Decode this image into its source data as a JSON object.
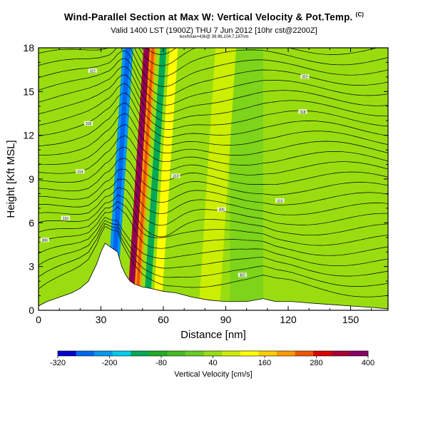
{
  "title": {
    "main": "Wind-Parallel Section at Max W: Vertical Velocity & Pot.Temp.",
    "copyright": "(C)",
    "sub1": "Valid 1400 LST (1900Z) THU 7 Jun 2012 [10hr cst@2200Z]",
    "sub2": "box/lmax=43k@ 39.96,104.7,187nm"
  },
  "chart_data": {
    "type": "heatmap",
    "xlabel": "Distance [nm]",
    "ylabel": "Height [Kft MSL]",
    "xlim": [
      0,
      168
    ],
    "ylim": [
      0,
      18
    ],
    "xticks": [
      0,
      30,
      60,
      90,
      120,
      150
    ],
    "yticks": [
      0,
      3,
      6,
      9,
      12,
      15,
      18
    ],
    "grid": false,
    "colorbar": {
      "label": "Vertical Velocity [cm/s]",
      "tick_labels": [
        "-320",
        "-200",
        "-80",
        "40",
        "160",
        "280",
        "400"
      ],
      "tick_values": [
        -320,
        -200,
        -80,
        40,
        160,
        280,
        400
      ],
      "colors": [
        "#0000cc",
        "#0066ee",
        "#0099ee",
        "#00ccee",
        "#00aa55",
        "#22aa22",
        "#44bb22",
        "#66cc22",
        "#99dd11",
        "#ccee00",
        "#ffff00",
        "#ffcc00",
        "#ff9900",
        "#ee5500",
        "#dd0000",
        "#aa0033",
        "#880066"
      ]
    },
    "terrain_height_kft": [
      [
        0,
        0.3
      ],
      [
        4,
        0.6
      ],
      [
        10,
        0.9
      ],
      [
        16,
        1.2
      ],
      [
        20,
        1.5
      ],
      [
        24,
        2.0
      ],
      [
        26,
        2.6
      ],
      [
        28,
        3.2
      ],
      [
        30,
        4.0
      ],
      [
        32,
        4.6
      ],
      [
        34,
        4.4
      ],
      [
        36,
        4.2
      ],
      [
        38,
        4.0
      ],
      [
        40,
        3.0
      ],
      [
        42,
        2.4
      ],
      [
        44,
        2.0
      ],
      [
        46,
        1.8
      ],
      [
        50,
        1.6
      ],
      [
        54,
        1.5
      ],
      [
        60,
        1.3
      ],
      [
        66,
        1.2
      ],
      [
        74,
        0.9
      ],
      [
        82,
        0.7
      ],
      [
        90,
        0.6
      ],
      [
        100,
        0.6
      ],
      [
        108,
        0.8
      ],
      [
        114,
        0.6
      ],
      [
        122,
        0.6
      ],
      [
        130,
        0.5
      ],
      [
        140,
        0.4
      ],
      [
        150,
        0.3
      ],
      [
        160,
        0.2
      ],
      [
        168,
        0.1
      ]
    ],
    "vertical_velocity_features": [
      {
        "x": 35,
        "width_nm": 5,
        "w_cm_s": -200
      },
      {
        "x": 44,
        "width_nm": 3,
        "w_cm_s": 320
      },
      {
        "x": 47,
        "width_nm": 3,
        "w_cm_s": 200
      },
      {
        "x": 52,
        "width_nm": 3,
        "w_cm_s": -120
      },
      {
        "x": 57,
        "width_nm": 4,
        "w_cm_s": 140
      },
      {
        "x": 82,
        "width_nm": 10,
        "w_cm_s": 90
      },
      {
        "x": 112,
        "width_nm": 8,
        "w_cm_s": 60
      }
    ],
    "pot_temp_contour_labels": [
      {
        "x": 3,
        "y": 4.8,
        "text": "306"
      },
      {
        "x": 13,
        "y": 6.3,
        "text": "310"
      },
      {
        "x": 20,
        "y": 9.5,
        "text": "314"
      },
      {
        "x": 24,
        "y": 12.8,
        "text": "318"
      },
      {
        "x": 26,
        "y": 16.4,
        "text": "322"
      },
      {
        "x": 66,
        "y": 9.2,
        "text": "310"
      },
      {
        "x": 88,
        "y": 6.9,
        "text": "306"
      },
      {
        "x": 116,
        "y": 7.5,
        "text": "310"
      },
      {
        "x": 127,
        "y": 13.6,
        "text": "318"
      },
      {
        "x": 128,
        "y": 16.0,
        "text": "322"
      },
      {
        "x": 98,
        "y": 2.4,
        "text": "302"
      }
    ]
  }
}
